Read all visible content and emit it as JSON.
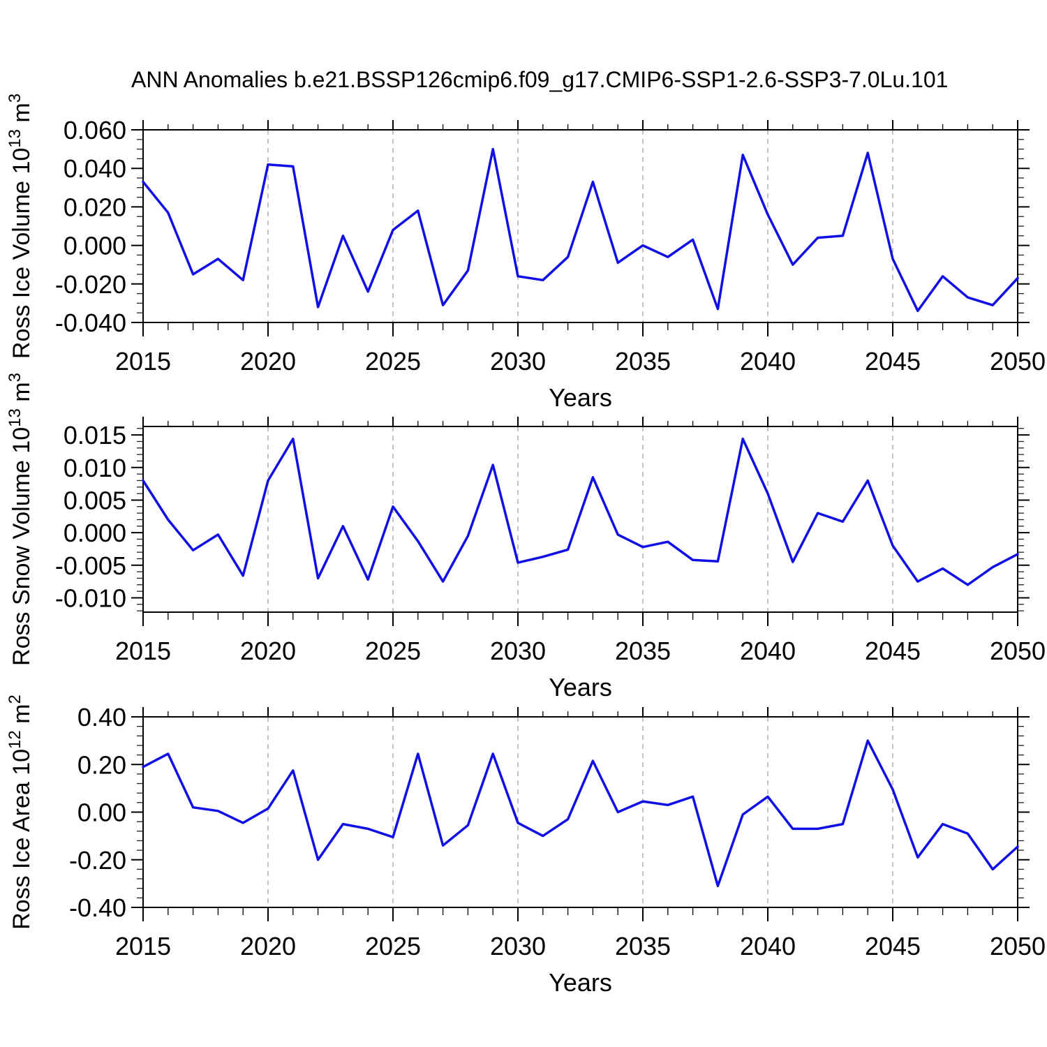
{
  "title": "ANN Anomalies b.e21.BSSP126cmip6.f09_g17.CMIP6-SSP1-2.6-SSP3-7.0Lu.101",
  "line_color": "#0f0fe6",
  "gridline_color": "#8a8a8a",
  "x_axis": {
    "label": "Years",
    "range": [
      2015,
      2050
    ],
    "major_ticks": [
      2015,
      2020,
      2025,
      2030,
      2035,
      2040,
      2045,
      2050
    ],
    "tick_labels": [
      "2015",
      "2020",
      "2025",
      "2030",
      "2035",
      "2040",
      "2045",
      "2050"
    ],
    "minor_tick_every": 1,
    "dashed_gridlines_at": [
      2020,
      2025,
      2030,
      2035,
      2040,
      2045
    ]
  },
  "chart_data": [
    {
      "id": "ross-ice-volume",
      "type": "line",
      "ylabel": "Ross Ice Volume 10^13 m^3",
      "ylabel_parts": {
        "prefix": "Ross Ice Volume 10",
        "sup1": "13",
        "mid": " m",
        "sup2": "3"
      },
      "xlabel": "Years",
      "ylim": [
        -0.04,
        0.06
      ],
      "ytick_labels": [
        "0.060",
        "0.040",
        "0.020",
        "0.000",
        "-0.020",
        "-0.040"
      ],
      "yticks": [
        0.06,
        0.04,
        0.02,
        0.0,
        -0.02,
        -0.04
      ],
      "minor_step": 0.005,
      "decimals": 3,
      "x": [
        2015,
        2016,
        2017,
        2018,
        2019,
        2020,
        2021,
        2022,
        2023,
        2024,
        2025,
        2026,
        2027,
        2028,
        2029,
        2030,
        2031,
        2032,
        2033,
        2034,
        2035,
        2036,
        2037,
        2038,
        2039,
        2040,
        2041,
        2042,
        2043,
        2044,
        2045,
        2046,
        2047,
        2048,
        2049,
        2050
      ],
      "values": [
        0.033,
        0.017,
        -0.015,
        -0.007,
        -0.018,
        0.042,
        0.041,
        -0.032,
        0.005,
        -0.024,
        0.008,
        0.018,
        -0.031,
        -0.013,
        0.05,
        -0.016,
        -0.018,
        -0.006,
        0.033,
        -0.009,
        0.0,
        -0.006,
        0.003,
        -0.033,
        0.047,
        0.016,
        -0.01,
        0.004,
        0.005,
        0.048,
        -0.007,
        -0.034,
        -0.016,
        -0.027,
        -0.031,
        -0.017
      ]
    },
    {
      "id": "ross-snow-volume",
      "type": "line",
      "ylabel": "Ross Snow Volume 10^13 m^3",
      "ylabel_parts": {
        "prefix": "Ross Snow Volume 10",
        "sup1": "13",
        "mid": " m",
        "sup2": "3"
      },
      "xlabel": "Years",
      "ylim": [
        -0.0122,
        0.0163
      ],
      "ytick_labels": [
        "0.015",
        "0.010",
        "0.005",
        "0.000",
        "-0.005",
        "-0.010"
      ],
      "yticks": [
        0.015,
        0.01,
        0.005,
        0.0,
        -0.005,
        -0.01
      ],
      "minor_step": 0.001,
      "decimals": 3,
      "x": [
        2015,
        2016,
        2017,
        2018,
        2019,
        2020,
        2021,
        2022,
        2023,
        2024,
        2025,
        2026,
        2027,
        2028,
        2029,
        2030,
        2031,
        2032,
        2033,
        2034,
        2035,
        2036,
        2037,
        2038,
        2039,
        2040,
        2041,
        2042,
        2043,
        2044,
        2045,
        2046,
        2047,
        2048,
        2049,
        2050
      ],
      "values": [
        0.008,
        0.002,
        -0.0027,
        -0.0003,
        -0.0066,
        0.008,
        0.0144,
        -0.007,
        0.001,
        -0.0072,
        0.004,
        -0.0013,
        -0.0075,
        -0.0005,
        0.0104,
        -0.0046,
        -0.0037,
        -0.0026,
        0.0085,
        -0.0003,
        -0.0022,
        -0.0014,
        -0.0042,
        -0.0044,
        0.0144,
        0.006,
        -0.0045,
        0.003,
        0.0017,
        0.008,
        -0.002,
        -0.0075,
        -0.0055,
        -0.008,
        -0.0053,
        -0.0033
      ]
    },
    {
      "id": "ross-ice-area",
      "type": "line",
      "ylabel": "Ross Ice Area 10^12 m^2",
      "ylabel_parts": {
        "prefix": "Ross Ice Area 10",
        "sup1": "12",
        "mid": " m",
        "sup2": "2"
      },
      "xlabel": "Years",
      "ylim": [
        -0.4,
        0.4
      ],
      "ytick_labels": [
        "0.40",
        "0.20",
        "0.00",
        "-0.20",
        "-0.40"
      ],
      "yticks": [
        0.4,
        0.2,
        0.0,
        -0.2,
        -0.4
      ],
      "minor_step": 0.04,
      "decimals": 2,
      "x": [
        2015,
        2016,
        2017,
        2018,
        2019,
        2020,
        2021,
        2022,
        2023,
        2024,
        2025,
        2026,
        2027,
        2028,
        2029,
        2030,
        2031,
        2032,
        2033,
        2034,
        2035,
        2036,
        2037,
        2038,
        2039,
        2040,
        2041,
        2042,
        2043,
        2044,
        2045,
        2046,
        2047,
        2048,
        2049,
        2050
      ],
      "values": [
        0.19,
        0.245,
        0.02,
        0.005,
        -0.045,
        0.015,
        0.175,
        -0.2,
        -0.05,
        -0.07,
        -0.105,
        0.245,
        -0.14,
        -0.055,
        0.245,
        -0.045,
        -0.1,
        -0.03,
        0.215,
        0.0,
        0.045,
        0.03,
        0.065,
        -0.31,
        -0.01,
        0.065,
        -0.07,
        -0.07,
        -0.05,
        0.3,
        0.095,
        -0.19,
        -0.05,
        -0.09,
        -0.24,
        -0.145
      ]
    }
  ]
}
